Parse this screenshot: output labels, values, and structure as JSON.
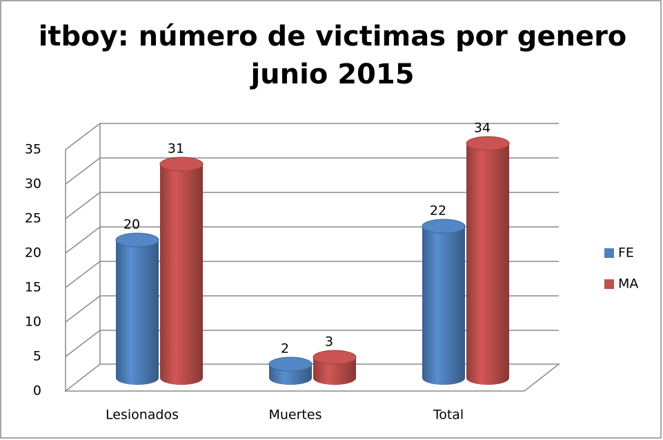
{
  "chart_data": {
    "type": "bar3d",
    "title": [
      "itboy: número de victimas por genero",
      "junio 2015"
    ],
    "categories": [
      "Lesionados",
      "Muertes",
      "Total"
    ],
    "series": [
      {
        "name": "FE",
        "color": "#4f81bd",
        "values": [
          20,
          2,
          22
        ]
      },
      {
        "name": "MA",
        "color": "#c0504d",
        "values": [
          31,
          3,
          34
        ]
      }
    ],
    "ylim": [
      0,
      35
    ],
    "yticks": [
      0,
      5,
      10,
      15,
      20,
      25,
      30,
      35
    ],
    "grid": true,
    "legend": "right"
  }
}
